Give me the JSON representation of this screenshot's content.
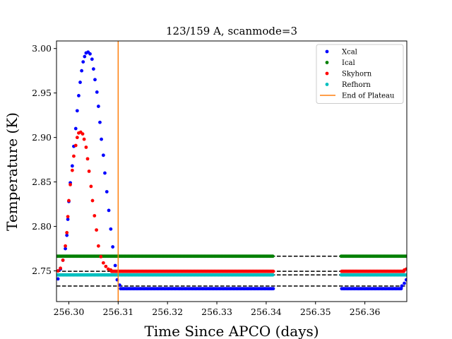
{
  "chart_data": {
    "type": "scatter",
    "title": "123/159 A, scanmode=3",
    "xlabel": "Time Since APCO (days)",
    "ylabel": "Temperature (K)",
    "xlim": [
      256.2975,
      256.3685
    ],
    "ylim": [
      2.7155,
      3.0085
    ],
    "x_ticks": [
      256.3,
      256.31,
      256.32,
      256.33,
      256.34,
      256.35,
      256.36
    ],
    "x_tick_labels": [
      "256.30",
      "256.31",
      "256.32",
      "256.33",
      "256.34",
      "256.35",
      "256.36"
    ],
    "y_ticks": [
      2.75,
      2.8,
      2.85,
      2.9,
      2.95,
      3.0
    ],
    "y_tick_labels": [
      "2.75",
      "2.80",
      "2.85",
      "2.90",
      "2.95",
      "3.00"
    ],
    "grid": false,
    "legend": {
      "placement": "top-right"
    },
    "plateau_end": {
      "name": "End of Plateau",
      "x": 256.31,
      "color": "#ff7f0e"
    },
    "reference_lines": [
      {
        "y": 2.7665,
        "style": "dashed",
        "color": "#000000"
      },
      {
        "y": 2.7495,
        "style": "dashed",
        "color": "#000000"
      },
      {
        "y": 2.7455,
        "style": "dashed",
        "color": "#000000"
      },
      {
        "y": 2.733,
        "style": "dashed",
        "color": "#000000"
      }
    ],
    "gap": [
      256.3415,
      256.3552
    ],
    "series": [
      {
        "name": "Xcal",
        "color": "#0000ff",
        "peak_points": [
          [
            256.2978,
            2.741
          ],
          [
            256.2983,
            2.752
          ],
          [
            256.2988,
            2.762
          ],
          [
            256.2993,
            2.775
          ],
          [
            256.2996,
            2.79
          ],
          [
            256.2998,
            2.808
          ],
          [
            256.3,
            2.828
          ],
          [
            256.3003,
            2.849
          ],
          [
            256.3007,
            2.868
          ],
          [
            256.301,
            2.89
          ],
          [
            256.3014,
            2.91
          ],
          [
            256.3017,
            2.93
          ],
          [
            256.302,
            2.947
          ],
          [
            256.3023,
            2.962
          ],
          [
            256.3026,
            2.975
          ],
          [
            256.3029,
            2.985
          ],
          [
            256.3032,
            2.991
          ],
          [
            256.3035,
            2.995
          ],
          [
            256.3039,
            2.996
          ],
          [
            256.3043,
            2.994
          ],
          [
            256.3047,
            2.988
          ],
          [
            256.305,
            2.977
          ],
          [
            256.3053,
            2.965
          ],
          [
            256.3057,
            2.951
          ],
          [
            256.306,
            2.935
          ],
          [
            256.3063,
            2.917
          ],
          [
            256.3066,
            2.898
          ],
          [
            256.307,
            2.88
          ],
          [
            256.3073,
            2.86
          ],
          [
            256.3077,
            2.839
          ],
          [
            256.3081,
            2.818
          ],
          [
            256.3085,
            2.797
          ],
          [
            256.3089,
            2.777
          ],
          [
            256.3094,
            2.756
          ],
          [
            256.3098,
            2.74
          ],
          [
            256.3103,
            2.734
          ]
        ],
        "plateau_level": 2.73,
        "tail_points": [
          [
            256.3675,
            2.733
          ],
          [
            256.368,
            2.736
          ],
          [
            256.3684,
            2.74
          ]
        ]
      },
      {
        "name": "Ical",
        "color": "#008000",
        "plateau_level": 2.7665
      },
      {
        "name": "Skyhorn",
        "color": "#ff0000",
        "peak_points": [
          [
            256.2978,
            2.75
          ],
          [
            256.2983,
            2.753
          ],
          [
            256.2988,
            2.762
          ],
          [
            256.2993,
            2.778
          ],
          [
            256.2996,
            2.793
          ],
          [
            256.2998,
            2.811
          ],
          [
            256.3,
            2.829
          ],
          [
            256.3003,
            2.847
          ],
          [
            256.3007,
            2.863
          ],
          [
            256.301,
            2.879
          ],
          [
            256.3014,
            2.891
          ],
          [
            256.3017,
            2.9
          ],
          [
            256.302,
            2.905
          ],
          [
            256.3024,
            2.906
          ],
          [
            256.3028,
            2.904
          ],
          [
            256.3031,
            2.898
          ],
          [
            256.3035,
            2.889
          ],
          [
            256.3038,
            2.876
          ],
          [
            256.3041,
            2.862
          ],
          [
            256.3045,
            2.845
          ],
          [
            256.3048,
            2.829
          ],
          [
            256.3052,
            2.812
          ],
          [
            256.3056,
            2.796
          ],
          [
            256.306,
            2.778
          ],
          [
            256.3065,
            2.766
          ],
          [
            256.307,
            2.759
          ],
          [
            256.3075,
            2.755
          ],
          [
            256.308,
            2.752
          ],
          [
            256.3085,
            2.751
          ]
        ],
        "plateau_level": 2.7495,
        "tail_points": [
          [
            256.368,
            2.751
          ],
          [
            256.3684,
            2.752
          ]
        ]
      },
      {
        "name": "Refhorn",
        "color": "#00bfbf",
        "plateau_level": 2.7455
      }
    ]
  }
}
